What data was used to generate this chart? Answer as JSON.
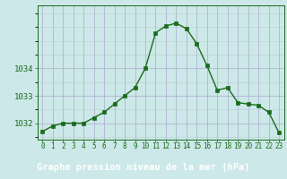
{
  "xlabel": "Graphe pression niveau de la mer (hPa)",
  "hours": [
    0,
    1,
    2,
    3,
    4,
    5,
    6,
    7,
    8,
    9,
    10,
    11,
    12,
    13,
    14,
    15,
    16,
    17,
    18,
    19,
    20,
    21,
    22,
    23
  ],
  "pressure": [
    1031.7,
    1031.9,
    1032.0,
    1032.0,
    1032.0,
    1032.2,
    1032.4,
    1032.7,
    1033.0,
    1033.3,
    1034.0,
    1035.3,
    1035.55,
    1035.65,
    1035.45,
    1034.9,
    1034.1,
    1033.2,
    1033.3,
    1032.75,
    1032.7,
    1032.65,
    1032.4,
    1031.65
  ],
  "line_color": "#1a6b1a",
  "marker_color": "#1a6b1a",
  "bg_color": "#cce8e8",
  "grid_color_major": "#aaaacc",
  "grid_color_minor": "#bbcccc",
  "bottom_bg": "#2a5f2a",
  "bottom_text": "#ffffff",
  "ylim_min": 1031.4,
  "ylim_max": 1036.3,
  "yticks": [
    1032,
    1033,
    1034
  ],
  "xlabel_fontsize": 7.5,
  "tick_fontsize": 6.5
}
